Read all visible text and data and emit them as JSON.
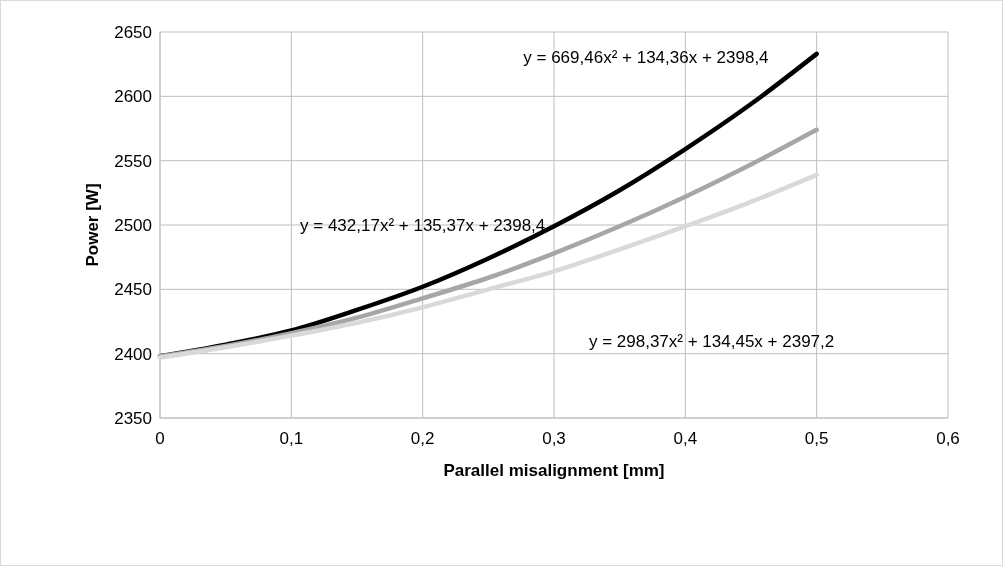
{
  "chart_data": {
    "type": "line",
    "xlabel": "Parallel misalignment [mm]",
    "ylabel": "Power [W]",
    "x": [
      0,
      0.05,
      0.1,
      0.15,
      0.2,
      0.25,
      0.3,
      0.35,
      0.4,
      0.45,
      0.5
    ],
    "series": [
      {
        "color": "#000000",
        "values": [
          2398,
          2407,
          2418,
          2434,
          2452,
          2474,
          2499,
          2527,
          2559,
          2594,
          2633
        ]
      },
      {
        "color": "#a6a6a6",
        "values": [
          2398,
          2406,
          2416,
          2428,
          2443,
          2459,
          2478,
          2499,
          2522,
          2547,
          2574
        ]
      },
      {
        "color": "#d9d9d9",
        "values": [
          2397,
          2405,
          2414,
          2424,
          2436,
          2450,
          2464,
          2481,
          2499,
          2518,
          2539
        ]
      }
    ],
    "xlim": [
      0,
      0.6
    ],
    "xticks": [
      0,
      {
        "value": 0.1,
        "label": "0,1"
      },
      {
        "value": 0.2,
        "label": "0,2"
      },
      {
        "value": 0.3,
        "label": "0,3"
      },
      {
        "value": 0.4,
        "label": "0,4"
      },
      {
        "value": 0.5,
        "label": "0,5"
      },
      {
        "value": 0.6,
        "label": "0,6"
      }
    ],
    "ylim": [
      2350,
      2650
    ],
    "yticks": [
      2350,
      2400,
      2450,
      2500,
      2550,
      2600,
      2650
    ],
    "grid": true,
    "line_style": "solid",
    "annotations": [
      "y = 669,46x² + 134,36x + 2398,4",
      "y = 432,17x² + 135,37x + 2398,4",
      "y = 298,37x² + 134,45x + 2397,2"
    ]
  }
}
